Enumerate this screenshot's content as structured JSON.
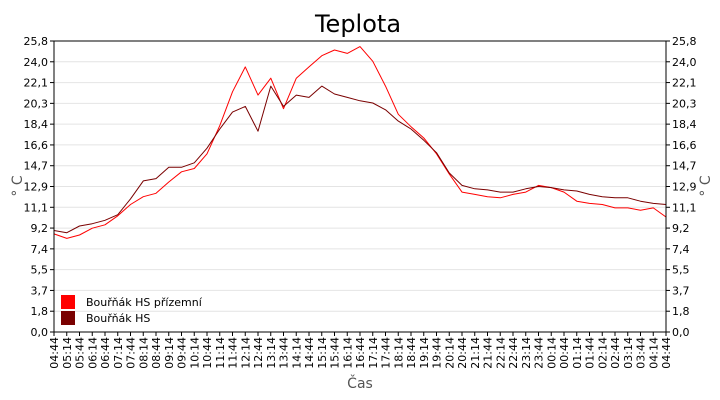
{
  "chart_data": {
    "type": "line",
    "title": "Teplota",
    "xlabel": "Čas",
    "ylabel": "° C",
    "ylim": [
      0,
      25.8
    ],
    "yticks": [
      "0,0",
      "1,8",
      "3,7",
      "5,5",
      "7,4",
      "9,2",
      "11,1",
      "12,9",
      "14,7",
      "16,6",
      "18,4",
      "20,3",
      "22,1",
      "24,0",
      "25,8"
    ],
    "xticks": [
      "04:44",
      "05:14",
      "05:44",
      "06:14",
      "06:44",
      "07:14",
      "07:44",
      "08:14",
      "08:44",
      "09:14",
      "09:44",
      "10:14",
      "10:44",
      "11:14",
      "11:44",
      "12:14",
      "12:44",
      "13:14",
      "13:44",
      "14:14",
      "14:44",
      "15:14",
      "15:44",
      "16:14",
      "16:44",
      "17:14",
      "17:44",
      "18:14",
      "18:44",
      "19:14",
      "19:44",
      "20:14",
      "20:44",
      "21:14",
      "21:44",
      "22:14",
      "22:44",
      "23:14",
      "23:44",
      "00:14",
      "00:44",
      "01:14",
      "01:44",
      "02:14",
      "02:44",
      "03:14",
      "03:44",
      "04:14",
      "04:44"
    ],
    "grid": true,
    "legend_position": "bottom-left",
    "series": [
      {
        "name": "Bouřňák HS přízemní",
        "color": "#ff0000",
        "values": [
          8.7,
          8.3,
          8.6,
          9.2,
          9.5,
          10.3,
          11.3,
          12.0,
          12.3,
          13.3,
          14.2,
          14.5,
          15.8,
          18.3,
          21.3,
          23.5,
          21.0,
          22.5,
          19.8,
          22.5,
          23.5,
          24.5,
          25.0,
          24.7,
          25.3,
          24.0,
          21.8,
          19.3,
          18.2,
          17.2,
          15.8,
          14.0,
          12.4,
          12.2,
          12.0,
          11.9,
          12.2,
          12.4,
          13.0,
          12.8,
          12.4,
          11.6,
          11.4,
          11.3,
          11.0,
          11.0,
          10.8,
          11.0,
          10.2
        ]
      },
      {
        "name": "Bouřňák HS",
        "color": "#7a0000",
        "values": [
          9.0,
          8.8,
          9.4,
          9.6,
          9.9,
          10.4,
          11.8,
          13.4,
          13.6,
          14.6,
          14.6,
          15.0,
          16.3,
          18.0,
          19.5,
          20.0,
          17.8,
          21.8,
          20.0,
          21.0,
          20.8,
          21.8,
          21.1,
          20.8,
          20.5,
          20.3,
          19.7,
          18.7,
          18.0,
          17.0,
          15.9,
          14.1,
          13.0,
          12.7,
          12.6,
          12.4,
          12.4,
          12.7,
          12.9,
          12.8,
          12.6,
          12.5,
          12.2,
          12.0,
          11.9,
          11.9,
          11.6,
          11.4,
          11.3
        ]
      }
    ]
  }
}
